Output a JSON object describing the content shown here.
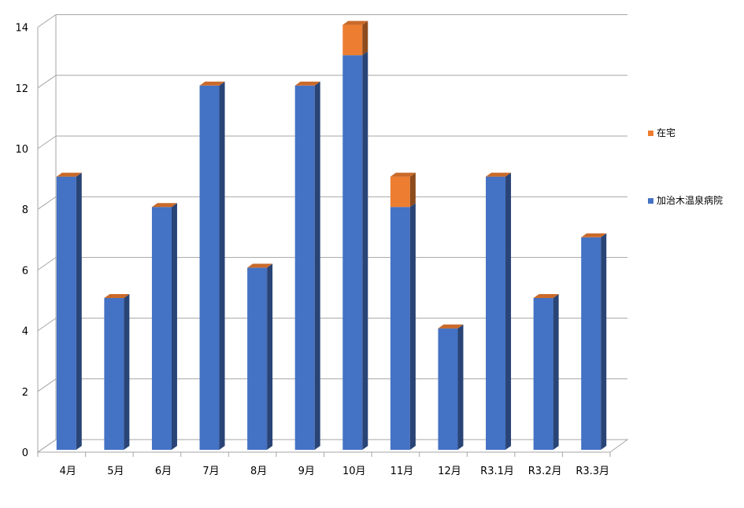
{
  "chart_data": {
    "type": "bar",
    "stacked": true,
    "three_d": true,
    "categories": [
      "4月",
      "5月",
      "6月",
      "7月",
      "8月",
      "9月",
      "10月",
      "11月",
      "12月",
      "R3.1月",
      "R3.2月",
      "R3.3月"
    ],
    "series": [
      {
        "name": "加治木温泉病院",
        "color": "#4472C4",
        "values": [
          9,
          5,
          8,
          12,
          6,
          12,
          13,
          8,
          4,
          9,
          5,
          7
        ]
      },
      {
        "name": "在宅",
        "color": "#ED7D31",
        "values": [
          0,
          0,
          0,
          0,
          0,
          0,
          1,
          1,
          0,
          0,
          0,
          0
        ]
      }
    ],
    "ylim": [
      0,
      14
    ],
    "yticks": [
      "0",
      "2",
      "4",
      "6",
      "8",
      "10",
      "12",
      "14"
    ],
    "grid": true,
    "legend_position": "right",
    "legend_order": [
      "在宅",
      "加治木温泉病院"
    ]
  }
}
